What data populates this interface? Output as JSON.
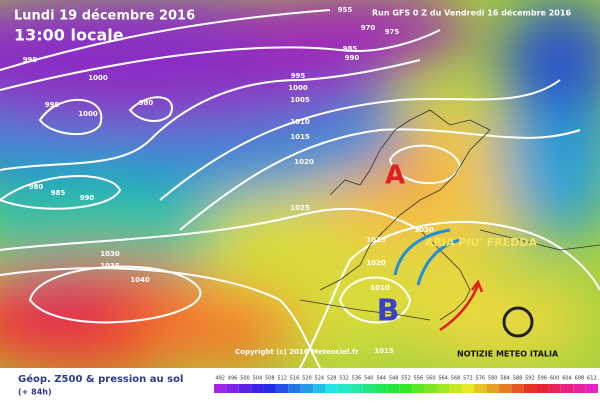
{
  "header": {
    "date": "Lundi 19 décembre 2016",
    "time": "13:00 locale",
    "run": "Run GFS 0 Z du Vendredi 16 décembre 2016"
  },
  "isobar_labels": [
    955,
    970,
    975,
    985,
    990,
    995,
    1000,
    995,
    1000,
    980,
    995,
    1000,
    1005,
    1010,
    1015,
    1020,
    980,
    985,
    990,
    1025,
    1030,
    1025,
    1030,
    1035,
    1040,
    1020,
    1010,
    1015
  ],
  "centers": {
    "high": "A",
    "low": "B"
  },
  "annotation": "ARIA PIU' FREDDA",
  "copyright": "Copyright (c) 2016 Meteociel.fr",
  "logo": "NOTIZIE METEO ITALIA",
  "footer": {
    "title": "Géop. Z500 & pression au sol",
    "lead": "(+ 84h)"
  },
  "scale": [
    492,
    496,
    500,
    504,
    508,
    512,
    516,
    520,
    524,
    528,
    532,
    536,
    540,
    544,
    548,
    552,
    556,
    560,
    564,
    568,
    572,
    576,
    580,
    584,
    588,
    592,
    596,
    600,
    604,
    608,
    612
  ]
}
